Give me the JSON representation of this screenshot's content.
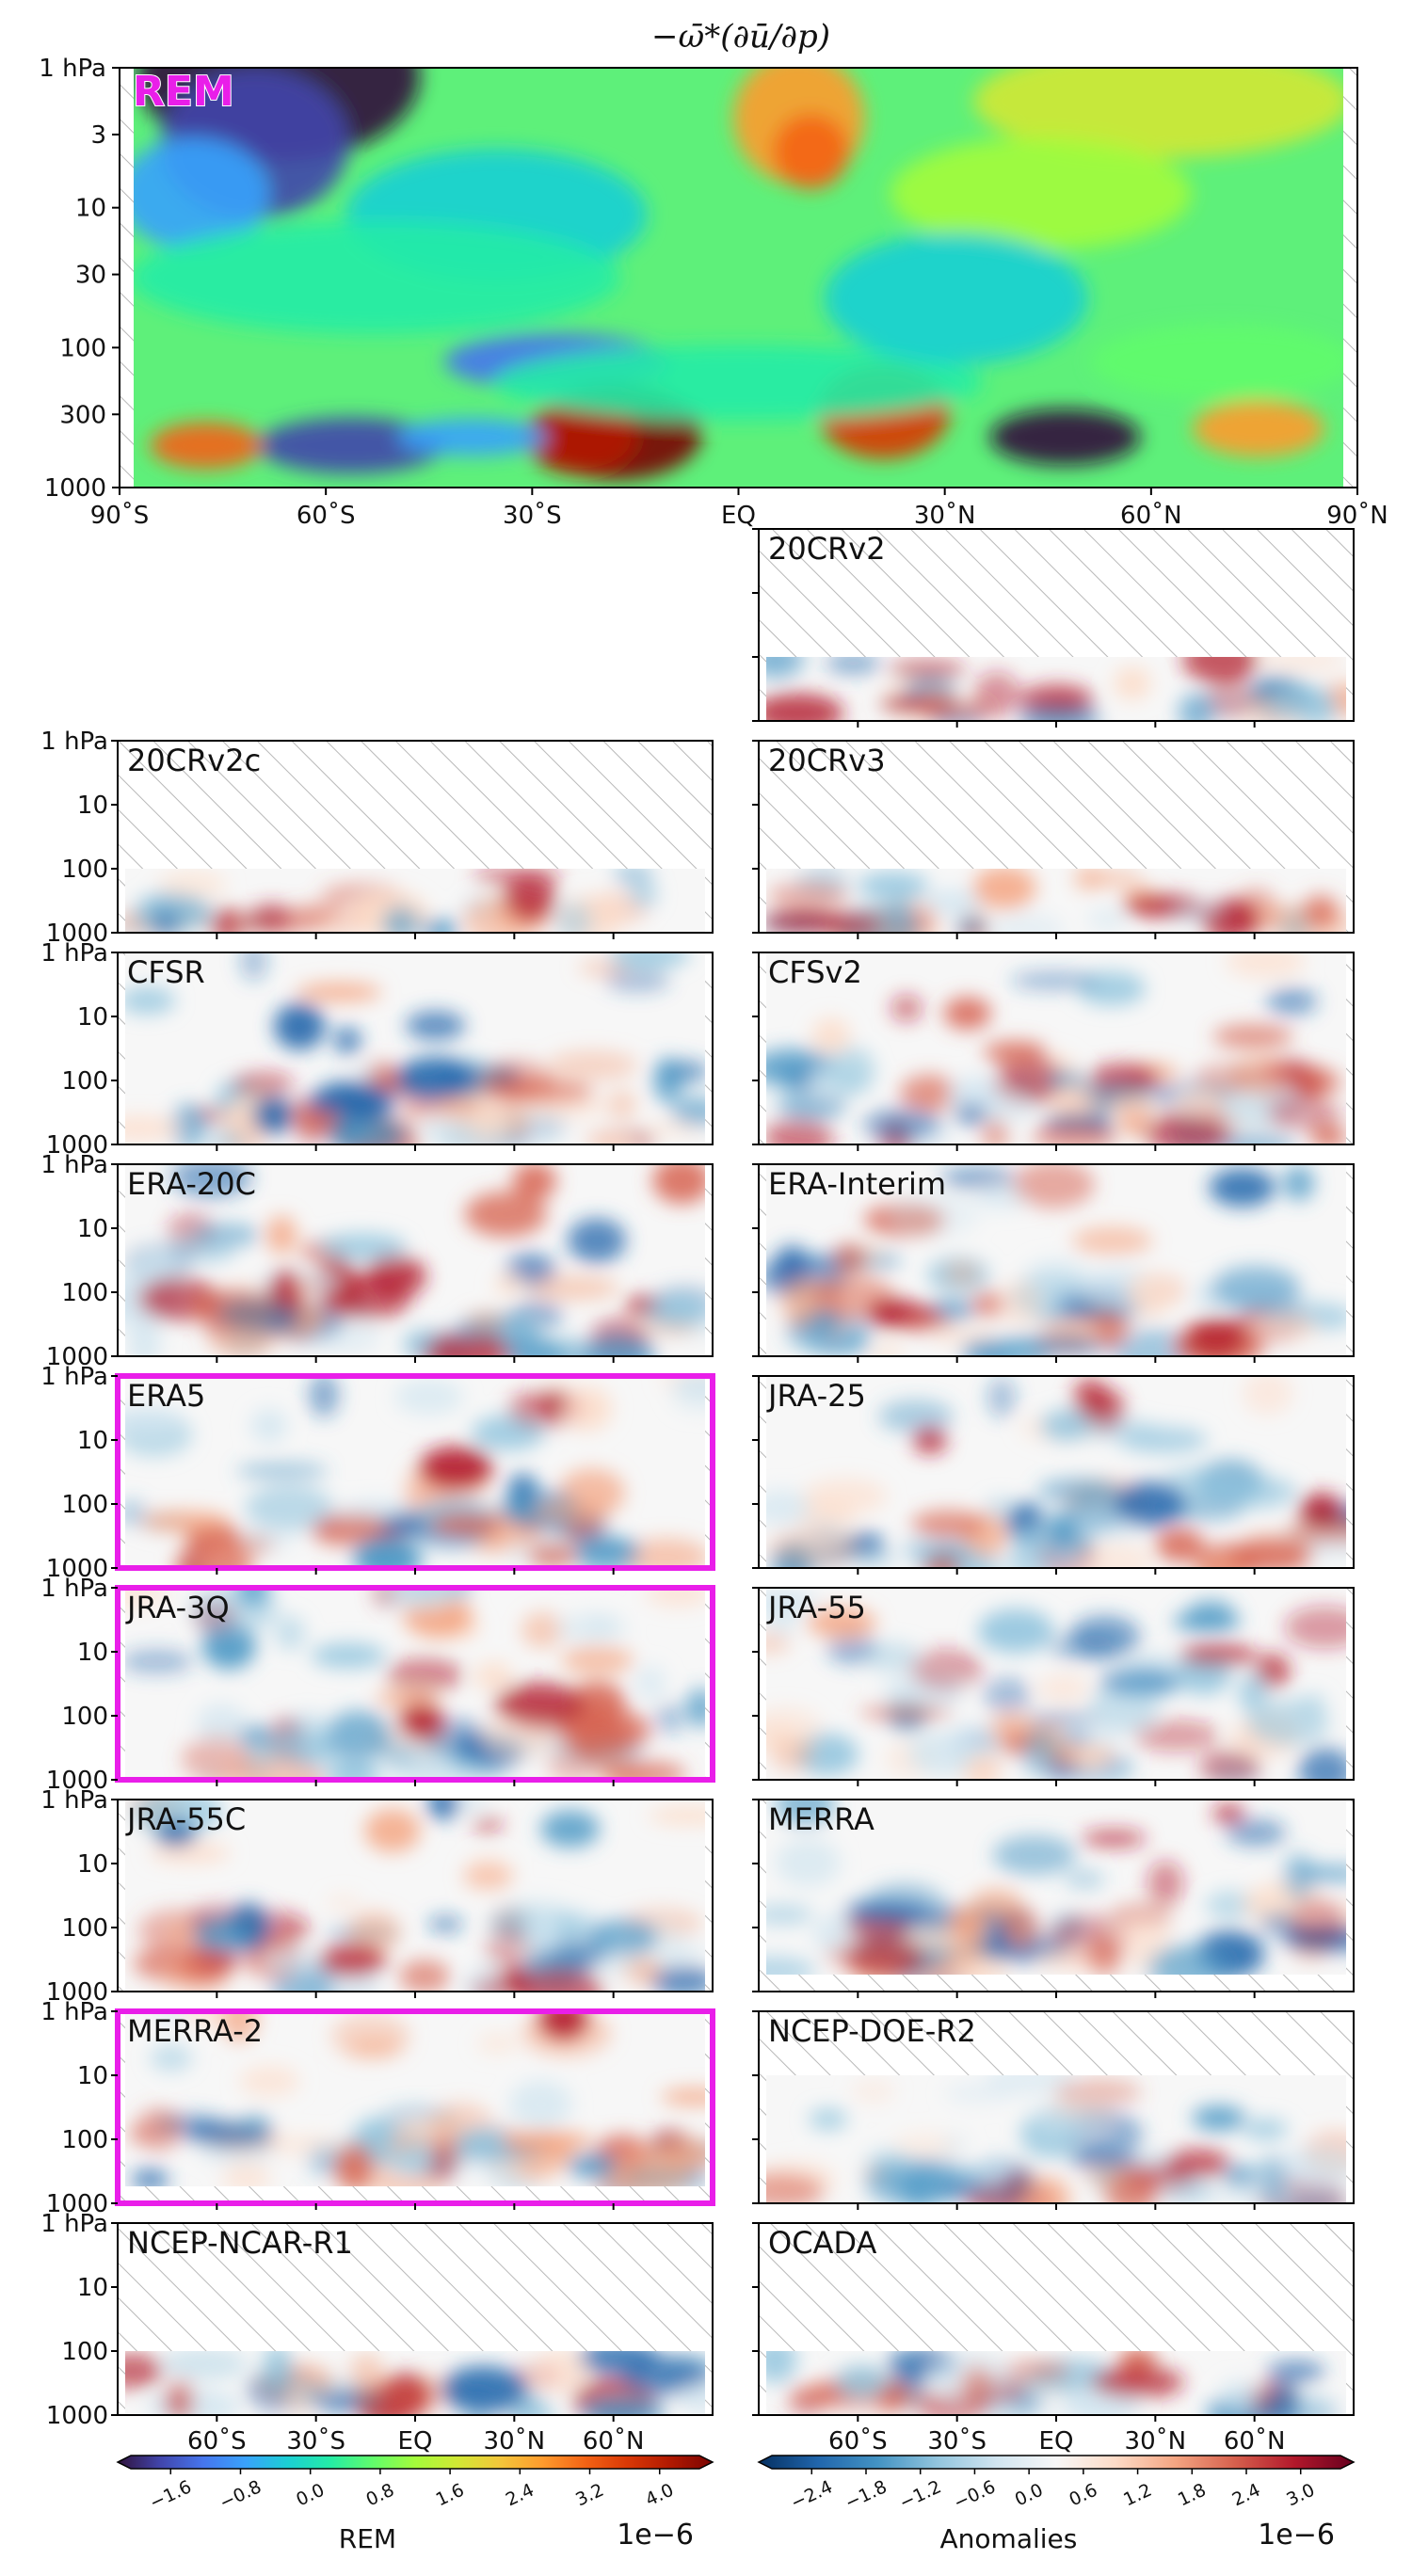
{
  "chart_data": {
    "type": "heatmap",
    "title": "−ω̄*(∂ū/∂p)",
    "y_ticks": [
      "1 hPa",
      "3",
      "10",
      "30",
      "100",
      "300",
      "1000"
    ],
    "y_ticks_small": [
      "1 hPa",
      "10",
      "100",
      "1000"
    ],
    "x_ticks": [
      "90˚S",
      "60˚S",
      "30˚S",
      "EQ",
      "30˚N",
      "60˚N",
      "90˚N"
    ],
    "x_ticks_bottom": [
      "60˚S",
      "30˚S",
      "EQ",
      "30˚N",
      "60˚N"
    ],
    "ylim": [
      1000,
      1
    ],
    "xlim": [
      -90,
      90
    ],
    "y_scale": "log",
    "main": {
      "name": "REM",
      "color": "#e91ee9"
    },
    "panels": [
      {
        "name": "20CRv2",
        "top_hpa": 100,
        "highlight": false
      },
      {
        "name": "20CRv2c",
        "top_hpa": 100,
        "highlight": false
      },
      {
        "name": "20CRv3",
        "top_hpa": 100,
        "highlight": false
      },
      {
        "name": "CFSR",
        "top_hpa": 1,
        "highlight": false
      },
      {
        "name": "CFSv2",
        "top_hpa": 1,
        "highlight": false
      },
      {
        "name": "ERA-20C",
        "top_hpa": 1,
        "highlight": false
      },
      {
        "name": "ERA-Interim",
        "top_hpa": 1,
        "highlight": false
      },
      {
        "name": "ERA5",
        "top_hpa": 1,
        "highlight": true
      },
      {
        "name": "JRA-25",
        "top_hpa": 1,
        "highlight": false
      },
      {
        "name": "JRA-3Q",
        "top_hpa": 1,
        "highlight": true
      },
      {
        "name": "JRA-55",
        "top_hpa": 1,
        "highlight": false
      },
      {
        "name": "JRA-55C",
        "top_hpa": 1,
        "highlight": false
      },
      {
        "name": "MERRA",
        "top_hpa": 1,
        "highlight": false
      },
      {
        "name": "MERRA-2",
        "top_hpa": 1,
        "highlight": true
      },
      {
        "name": "NCEP-DOE-R2",
        "top_hpa": 10,
        "highlight": false
      },
      {
        "name": "NCEP-NCAR-R1",
        "top_hpa": 100,
        "highlight": false
      },
      {
        "name": "OCADA",
        "top_hpa": 100,
        "highlight": false
      }
    ],
    "colorbars": [
      {
        "label": "REM",
        "exponent": "1e−6",
        "colormap": "turbo",
        "ticks": [
          "−1.6",
          "−0.8",
          "0.0",
          "0.8",
          "1.6",
          "2.4",
          "3.2",
          "4.0"
        ]
      },
      {
        "label": "Anomalies",
        "exponent": "1e−6",
        "colormap": "RdBu_r",
        "ticks": [
          "−2.4",
          "−1.8",
          "−1.2",
          "−0.6",
          "0.0",
          "0.6",
          "1.2",
          "1.8",
          "2.4",
          "3.0"
        ]
      }
    ],
    "grid": false
  }
}
